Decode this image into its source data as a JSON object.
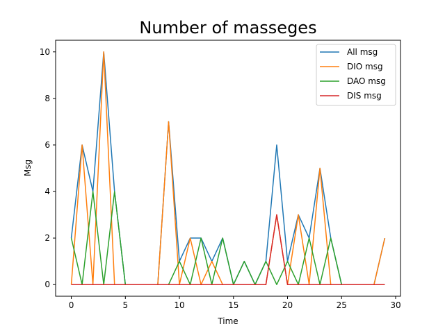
{
  "chart_data": {
    "type": "line",
    "title": "Number of masseges",
    "xlabel": "Time",
    "ylabel": "Msg",
    "xlim": [
      -1.45,
      30.45
    ],
    "ylim": [
      -0.5,
      10.5
    ],
    "xticks": [
      0,
      5,
      10,
      15,
      20,
      25,
      30
    ],
    "yticks": [
      0,
      2,
      4,
      6,
      8,
      10
    ],
    "grid": false,
    "legend_position": "top-right",
    "x": [
      0,
      1,
      2,
      3,
      4,
      5,
      6,
      7,
      8,
      9,
      10,
      11,
      12,
      13,
      14,
      15,
      16,
      17,
      18,
      19,
      20,
      21,
      22,
      23,
      24,
      25,
      26,
      27,
      28,
      29
    ],
    "series": [
      {
        "name": "All msg",
        "color": "#1f77b4",
        "values": [
          2,
          6,
          4,
          10,
          4,
          0,
          0,
          0,
          0,
          7,
          1,
          2,
          2,
          1,
          2,
          0,
          1,
          0,
          1,
          6,
          1,
          3,
          2,
          5,
          2,
          0,
          0,
          0,
          0,
          2
        ]
      },
      {
        "name": "DIO msg",
        "color": "#ff7f0e",
        "values": [
          0,
          6,
          0,
          10,
          0,
          0,
          0,
          0,
          0,
          7,
          0,
          2,
          0,
          1,
          0,
          0,
          0,
          0,
          0,
          3,
          0,
          3,
          0,
          5,
          0,
          0,
          0,
          0,
          0,
          2
        ]
      },
      {
        "name": "DAO msg",
        "color": "#2ca02c",
        "values": [
          2,
          0,
          4,
          0,
          4,
          0,
          0,
          0,
          0,
          0,
          1,
          0,
          2,
          0,
          2,
          0,
          1,
          0,
          1,
          0,
          1,
          0,
          2,
          0,
          2,
          0,
          0,
          0,
          0,
          0
        ]
      },
      {
        "name": "DIS msg",
        "color": "#d62728",
        "values": [
          0,
          0,
          0,
          0,
          0,
          0,
          0,
          0,
          0,
          0,
          0,
          0,
          0,
          0,
          0,
          0,
          0,
          0,
          0,
          3,
          0,
          0,
          0,
          0,
          0,
          0,
          0,
          0,
          0,
          0
        ]
      }
    ]
  }
}
